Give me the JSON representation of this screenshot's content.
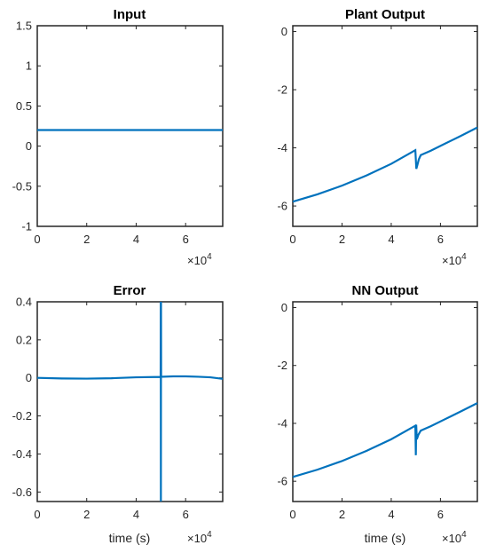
{
  "chart_data": [
    {
      "type": "line",
      "title": "Input",
      "xlabel": "",
      "ylabel": "",
      "xlim": [
        0,
        75000
      ],
      "ylim": [
        -1,
        1.5
      ],
      "xticks": [
        0,
        20000,
        40000,
        60000
      ],
      "xtick_labels": [
        "0",
        "2",
        "4",
        "6"
      ],
      "yticks": [
        -1,
        -0.5,
        0,
        0.5,
        1,
        1.5
      ],
      "ytick_labels": [
        "-1",
        "-0.5",
        "0",
        "0.5",
        "1",
        "1.5"
      ],
      "x_exponent": "×10",
      "x_exponent_power": "4",
      "grid": false,
      "color": "#0072BD",
      "series": [
        {
          "x": [
            0,
            75000
          ],
          "y": [
            0.2,
            0.2
          ]
        }
      ]
    },
    {
      "type": "line",
      "title": "Plant Output",
      "xlabel": "",
      "ylabel": "",
      "xlim": [
        0,
        75000
      ],
      "ylim": [
        -6.7,
        0.2
      ],
      "xticks": [
        0,
        20000,
        40000,
        60000
      ],
      "xtick_labels": [
        "0",
        "2",
        "4",
        "6"
      ],
      "yticks": [
        -6,
        -4,
        -2,
        0
      ],
      "ytick_labels": [
        "-6",
        "-4",
        "-2",
        "0"
      ],
      "x_exponent": "×10",
      "x_exponent_power": "4",
      "grid": false,
      "color": "#0072BD",
      "series": [
        {
          "x": [
            0,
            10000,
            20000,
            30000,
            40000,
            49800,
            50200,
            50600,
            51200,
            52000,
            56000,
            62000,
            68000,
            75000
          ],
          "y": [
            -5.85,
            -5.6,
            -5.3,
            -4.95,
            -4.55,
            -4.08,
            -4.72,
            -4.6,
            -4.4,
            -4.25,
            -4.1,
            -3.85,
            -3.6,
            -3.3
          ]
        }
      ]
    },
    {
      "type": "line",
      "title": "Error",
      "xlabel": "time (s)",
      "ylabel": "",
      "xlim": [
        0,
        75000
      ],
      "ylim": [
        -0.65,
        0.4
      ],
      "xticks": [
        0,
        20000,
        40000,
        60000
      ],
      "xtick_labels": [
        "0",
        "2",
        "4",
        "6"
      ],
      "yticks": [
        -0.6,
        -0.4,
        -0.2,
        0,
        0.2,
        0.4
      ],
      "ytick_labels": [
        "-0.6",
        "-0.4",
        "-0.2",
        "0",
        "0.2",
        "0.4"
      ],
      "x_exponent": "×10",
      "x_exponent_power": "4",
      "grid": false,
      "color": "#0072BD",
      "series": [
        {
          "x": [
            0,
            10000,
            20000,
            30000,
            40000,
            49900,
            49950,
            50000,
            50050,
            50100,
            55000,
            60000,
            65000,
            70000,
            75000
          ],
          "y": [
            0,
            -0.003,
            -0.004,
            -0.002,
            0.003,
            0.005,
            0.4,
            -0.65,
            0.4,
            0.006,
            0.008,
            0.008,
            0.006,
            0.003,
            -0.005
          ]
        }
      ]
    },
    {
      "type": "line",
      "title": "NN Output",
      "xlabel": "time (s)",
      "ylabel": "",
      "xlim": [
        0,
        75000
      ],
      "ylim": [
        -6.7,
        0.2
      ],
      "xticks": [
        0,
        20000,
        40000,
        60000
      ],
      "xtick_labels": [
        "0",
        "2",
        "4",
        "6"
      ],
      "yticks": [
        -6,
        -4,
        -2,
        0
      ],
      "ytick_labels": [
        "-6",
        "-4",
        "-2",
        "0"
      ],
      "x_exponent": "×10",
      "x_exponent_power": "4",
      "grid": false,
      "color": "#0072BD",
      "series": [
        {
          "x": [
            0,
            10000,
            20000,
            30000,
            40000,
            49800,
            50000,
            50150,
            50400,
            51000,
            52000,
            56000,
            62000,
            68000,
            75000
          ],
          "y": [
            -5.85,
            -5.6,
            -5.3,
            -4.95,
            -4.55,
            -4.08,
            -5.1,
            -4.05,
            -4.55,
            -4.4,
            -4.25,
            -4.1,
            -3.85,
            -3.6,
            -3.3
          ]
        }
      ]
    }
  ]
}
